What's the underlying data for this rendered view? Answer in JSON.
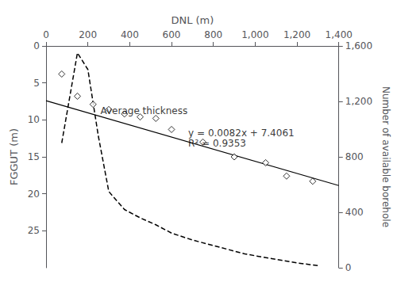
{
  "chart_data": {
    "type": "scatter",
    "xlabel": "DNL (m)",
    "ylabel": "FGGUT (m)",
    "y2label": "Number of available borehole",
    "xlim": [
      0,
      1400
    ],
    "xticks": [
      0,
      200,
      400,
      600,
      800,
      1000,
      1200,
      1400
    ],
    "ylim": [
      30,
      0
    ],
    "yticks": [
      0,
      5,
      10,
      15,
      20,
      25
    ],
    "y2lim": [
      0,
      1600
    ],
    "y2ticks": [
      0,
      400,
      800,
      1200,
      1600
    ],
    "grid": false,
    "series": [
      {
        "type": "scatter",
        "marker": "diamond",
        "color": "#000000",
        "x": [
          75,
          150,
          225,
          300,
          375,
          450,
          525,
          600,
          750,
          900,
          1050,
          1150,
          1275
        ],
        "values": [
          3.8,
          6.8,
          7.9,
          8.6,
          9.2,
          9.6,
          9.8,
          11.3,
          13.0,
          15.0,
          15.8,
          17.6,
          18.3
        ]
      },
      {
        "type": "line",
        "line_style": "solid",
        "color": "#000000",
        "x": [
          0,
          1400
        ],
        "values": [
          7.4061,
          18.8861
        ]
      },
      {
        "type": "line",
        "line_style": "dashed",
        "color": "#000000",
        "axis": "y2",
        "x": [
          75,
          150,
          200,
          250,
          300,
          375,
          450,
          525,
          600,
          700,
          800,
          950,
          1100,
          1200,
          1300
        ],
        "values": [
          900,
          1550,
          1430,
          950,
          550,
          420,
          360,
          310,
          250,
          200,
          160,
          100,
          60,
          35,
          15
        ]
      }
    ],
    "annotations": [
      {
        "text": "Average thickness",
        "x": 260,
        "y": 8.8
      },
      {
        "text": "y = 0.0082x + 7.4061",
        "x": 680,
        "y": 11.8
      },
      {
        "text": "R² = 0.9353",
        "x": 680,
        "y": 13.2
      }
    ]
  }
}
